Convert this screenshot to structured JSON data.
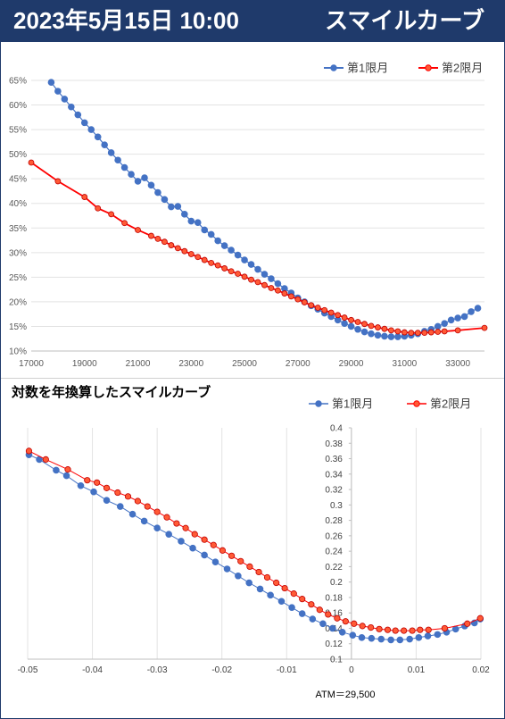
{
  "header": {
    "date_time": "2023年5月15日 10:00",
    "title": "スマイルカーブ"
  },
  "colors": {
    "header_bg": "#1f3a6b",
    "series1": "#4472c4",
    "series2": "#ff0000",
    "series2_marker": "#ff5a36"
  },
  "chart_data": [
    {
      "type": "line",
      "title": "",
      "xlabel": "",
      "ylabel": "",
      "xlim": [
        17000,
        34000
      ],
      "ylim": [
        10,
        65
      ],
      "x_ticks": [
        "17000",
        "19000",
        "21000",
        "23000",
        "25000",
        "27000",
        "29000",
        "31000",
        "33000"
      ],
      "y_ticks": [
        "10%",
        "15%",
        "20%",
        "25%",
        "30%",
        "35%",
        "40%",
        "45%",
        "50%",
        "55%",
        "60%",
        "65%"
      ],
      "grid": "horizontal",
      "legend_position": "top-right",
      "series": [
        {
          "name": "第1限月",
          "points": [
            [
              17750,
              64.6
            ],
            [
              18000,
              62.8
            ],
            [
              18250,
              61.2
            ],
            [
              18500,
              59.6
            ],
            [
              18750,
              58.0
            ],
            [
              19000,
              56.4
            ],
            [
              19250,
              55.0
            ],
            [
              19500,
              53.5
            ],
            [
              19750,
              51.9
            ],
            [
              20000,
              50.3
            ],
            [
              20250,
              48.8
            ],
            [
              20500,
              47.3
            ],
            [
              20750,
              45.9
            ],
            [
              21000,
              44.5
            ],
            [
              21250,
              45.2
            ],
            [
              21500,
              43.7
            ],
            [
              21750,
              42.2
            ],
            [
              22000,
              40.8
            ],
            [
              22250,
              39.3
            ],
            [
              22500,
              39.4
            ],
            [
              22750,
              37.8
            ],
            [
              23000,
              36.4
            ],
            [
              23250,
              36.1
            ],
            [
              23500,
              34.6
            ],
            [
              23750,
              33.7
            ],
            [
              24000,
              32.4
            ],
            [
              24250,
              31.4
            ],
            [
              24500,
              30.5
            ],
            [
              24750,
              29.5
            ],
            [
              25000,
              28.5
            ],
            [
              25250,
              27.6
            ],
            [
              25500,
              26.6
            ],
            [
              25750,
              25.6
            ],
            [
              26000,
              24.7
            ],
            [
              26250,
              23.7
            ],
            [
              26500,
              22.7
            ],
            [
              26750,
              21.8
            ],
            [
              27000,
              20.8
            ],
            [
              27250,
              20.0
            ],
            [
              27500,
              19.2
            ],
            [
              27750,
              18.5
            ],
            [
              28000,
              17.7
            ],
            [
              28250,
              17.0
            ],
            [
              28500,
              16.3
            ],
            [
              28750,
              15.6
            ],
            [
              29000,
              15.0
            ],
            [
              29250,
              14.4
            ],
            [
              29500,
              13.9
            ],
            [
              29750,
              13.5
            ],
            [
              30000,
              13.2
            ],
            [
              30250,
              13.0
            ],
            [
              30500,
              12.9
            ],
            [
              30750,
              12.9
            ],
            [
              31000,
              13.0
            ],
            [
              31250,
              13.2
            ],
            [
              31500,
              13.5
            ],
            [
              31750,
              14.0
            ],
            [
              32000,
              14.4
            ],
            [
              32250,
              15.0
            ],
            [
              32500,
              15.6
            ],
            [
              32750,
              16.3
            ],
            [
              33000,
              16.7
            ],
            [
              33250,
              17.0
            ],
            [
              33500,
              18.0
            ],
            [
              33750,
              18.7
            ]
          ]
        },
        {
          "name": "第2限月",
          "points": [
            [
              17000,
              48.3
            ],
            [
              18000,
              44.5
            ],
            [
              19000,
              41.3
            ],
            [
              19500,
              39.0
            ],
            [
              20000,
              37.8
            ],
            [
              20500,
              36.0
            ],
            [
              21000,
              34.6
            ],
            [
              21500,
              33.4
            ],
            [
              21750,
              32.8
            ],
            [
              22000,
              32.2
            ],
            [
              22250,
              31.5
            ],
            [
              22500,
              30.9
            ],
            [
              22750,
              30.3
            ],
            [
              23000,
              29.7
            ],
            [
              23250,
              29.1
            ],
            [
              23500,
              28.5
            ],
            [
              23750,
              27.9
            ],
            [
              24000,
              27.4
            ],
            [
              24250,
              26.8
            ],
            [
              24500,
              26.2
            ],
            [
              24750,
              25.7
            ],
            [
              25000,
              25.1
            ],
            [
              25250,
              24.5
            ],
            [
              25500,
              24.0
            ],
            [
              25750,
              23.4
            ],
            [
              26000,
              22.8
            ],
            [
              26250,
              22.3
            ],
            [
              26500,
              21.7
            ],
            [
              26750,
              21.1
            ],
            [
              27000,
              20.5
            ],
            [
              27250,
              19.9
            ],
            [
              27500,
              19.3
            ],
            [
              27750,
              18.8
            ],
            [
              28000,
              18.3
            ],
            [
              28250,
              17.8
            ],
            [
              28500,
              17.3
            ],
            [
              28750,
              16.8
            ],
            [
              29000,
              16.3
            ],
            [
              29250,
              15.9
            ],
            [
              29500,
              15.5
            ],
            [
              29750,
              15.1
            ],
            [
              30000,
              14.8
            ],
            [
              30250,
              14.5
            ],
            [
              30500,
              14.2
            ],
            [
              30750,
              14.0
            ],
            [
              31000,
              13.8
            ],
            [
              31250,
              13.7
            ],
            [
              31500,
              13.7
            ],
            [
              31750,
              13.7
            ],
            [
              32000,
              13.8
            ],
            [
              32250,
              13.9
            ],
            [
              32500,
              14.0
            ],
            [
              33000,
              14.2
            ],
            [
              34000,
              14.7
            ]
          ]
        }
      ]
    },
    {
      "type": "line",
      "title": "対数を年換算したスマイルカーブ",
      "xlabel": "",
      "ylabel": "",
      "xlim": [
        -0.05,
        0.02
      ],
      "ylim": [
        0.1,
        0.4
      ],
      "x_ticks": [
        "-0.05",
        "-0.04",
        "-0.03",
        "-0.02",
        "-0.01",
        "0",
        "0.01",
        "0.02"
      ],
      "y_ticks": [
        "0.1",
        "0.12",
        "0.14",
        "0.16",
        "0.18",
        "0.2",
        "0.22",
        "0.24",
        "0.26",
        "0.28",
        "0.3",
        "0.32",
        "0.34",
        "0.36",
        "0.38",
        "0.4"
      ],
      "grid": "vertical",
      "legend_position": "top-right",
      "annotation": "ATM＝29,500",
      "series": [
        {
          "name": "第1限月",
          "points": [
            [
              -0.0498,
              0.365
            ],
            [
              -0.0482,
              0.359
            ],
            [
              -0.0456,
              0.345
            ],
            [
              -0.044,
              0.338
            ],
            [
              -0.0418,
              0.325
            ],
            [
              -0.0398,
              0.317
            ],
            [
              -0.0378,
              0.306
            ],
            [
              -0.0357,
              0.298
            ],
            [
              -0.0338,
              0.288
            ],
            [
              -0.032,
              0.279
            ],
            [
              -0.03,
              0.27
            ],
            [
              -0.0282,
              0.262
            ],
            [
              -0.0263,
              0.253
            ],
            [
              -0.0245,
              0.244
            ],
            [
              -0.0227,
              0.235
            ],
            [
              -0.021,
              0.226
            ],
            [
              -0.0192,
              0.217
            ],
            [
              -0.0175,
              0.208
            ],
            [
              -0.0158,
              0.199
            ],
            [
              -0.0141,
              0.191
            ],
            [
              -0.0125,
              0.183
            ],
            [
              -0.0108,
              0.175
            ],
            [
              -0.0092,
              0.167
            ],
            [
              -0.0076,
              0.159
            ],
            [
              -0.006,
              0.152
            ],
            [
              -0.0044,
              0.146
            ],
            [
              -0.0029,
              0.14
            ],
            [
              -0.0014,
              0.135
            ],
            [
              0.0002,
              0.131
            ],
            [
              0.0016,
              0.128
            ],
            [
              0.0031,
              0.127
            ],
            [
              0.0046,
              0.126
            ],
            [
              0.0061,
              0.125
            ],
            [
              0.0075,
              0.125
            ],
            [
              0.009,
              0.126
            ],
            [
              0.0104,
              0.128
            ],
            [
              0.0118,
              0.13
            ],
            [
              0.0133,
              0.132
            ],
            [
              0.0147,
              0.135
            ],
            [
              0.0161,
              0.139
            ],
            [
              0.0175,
              0.143
            ],
            [
              0.019,
              0.147
            ],
            [
              0.0199,
              0.152
            ]
          ]
        },
        {
          "name": "第2限月",
          "points": [
            [
              -0.0498,
              0.37
            ],
            [
              -0.0472,
              0.359
            ],
            [
              -0.0438,
              0.346
            ],
            [
              -0.0408,
              0.332
            ],
            [
              -0.0393,
              0.329
            ],
            [
              -0.0378,
              0.322
            ],
            [
              -0.0361,
              0.316
            ],
            [
              -0.0345,
              0.311
            ],
            [
              -0.033,
              0.305
            ],
            [
              -0.0315,
              0.298
            ],
            [
              -0.03,
              0.291
            ],
            [
              -0.0285,
              0.284
            ],
            [
              -0.027,
              0.276
            ],
            [
              -0.0256,
              0.27
            ],
            [
              -0.0242,
              0.262
            ],
            [
              -0.0227,
              0.255
            ],
            [
              -0.0213,
              0.248
            ],
            [
              -0.0199,
              0.241
            ],
            [
              -0.0185,
              0.234
            ],
            [
              -0.0171,
              0.227
            ],
            [
              -0.0157,
              0.22
            ],
            [
              -0.0143,
              0.213
            ],
            [
              -0.013,
              0.206
            ],
            [
              -0.0116,
              0.199
            ],
            [
              -0.0103,
              0.192
            ],
            [
              -0.0089,
              0.185
            ],
            [
              -0.0076,
              0.178
            ],
            [
              -0.0062,
              0.171
            ],
            [
              -0.0049,
              0.164
            ],
            [
              -0.0036,
              0.158
            ],
            [
              -0.0022,
              0.153
            ],
            [
              -0.0009,
              0.149
            ],
            [
              0.0004,
              0.146
            ],
            [
              0.0017,
              0.143
            ],
            [
              0.003,
              0.141
            ],
            [
              0.0043,
              0.139
            ],
            [
              0.0056,
              0.138
            ],
            [
              0.0068,
              0.137
            ],
            [
              0.0081,
              0.137
            ],
            [
              0.0094,
              0.137
            ],
            [
              0.0106,
              0.138
            ],
            [
              0.0119,
              0.138
            ],
            [
              0.0144,
              0.14
            ],
            [
              0.0179,
              0.146
            ],
            [
              0.0199,
              0.153
            ]
          ]
        }
      ]
    }
  ]
}
